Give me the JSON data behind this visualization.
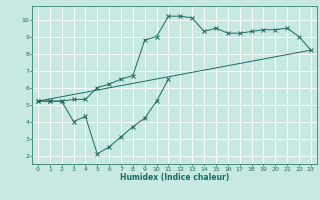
{
  "line1_x": [
    0,
    1,
    2,
    3,
    4,
    5,
    6,
    7,
    8,
    9,
    10,
    11,
    12,
    13,
    14,
    15,
    16,
    17,
    18,
    19,
    20,
    21,
    22,
    23
  ],
  "line1_y": [
    5.2,
    5.2,
    5.2,
    5.3,
    5.3,
    6.0,
    6.2,
    6.5,
    6.7,
    8.8,
    9.0,
    10.2,
    10.2,
    10.1,
    9.3,
    9.5,
    9.2,
    9.2,
    9.3,
    9.4,
    9.4,
    9.5,
    9.0,
    8.2
  ],
  "line2_x": [
    0,
    23
  ],
  "line2_y": [
    5.2,
    8.2
  ],
  "line3_x": [
    0,
    1,
    2,
    3,
    4,
    5,
    6,
    7,
    8,
    9,
    10,
    11
  ],
  "line3_y": [
    5.2,
    5.2,
    5.2,
    4.0,
    4.3,
    2.1,
    2.5,
    3.1,
    3.7,
    4.2,
    5.2,
    6.5
  ],
  "line_color": "#1a6b5e",
  "bg_color": "#c8e8e2",
  "grid_color": "#b0d8d0",
  "xlabel": "Humidex (Indice chaleur)",
  "ylim": [
    1.5,
    10.8
  ],
  "xlim": [
    -0.5,
    23.5
  ],
  "yticks": [
    2,
    3,
    4,
    5,
    6,
    7,
    8,
    9,
    10
  ],
  "xticks": [
    0,
    1,
    2,
    3,
    4,
    5,
    6,
    7,
    8,
    9,
    10,
    11,
    12,
    13,
    14,
    15,
    16,
    17,
    18,
    19,
    20,
    21,
    22,
    23
  ]
}
